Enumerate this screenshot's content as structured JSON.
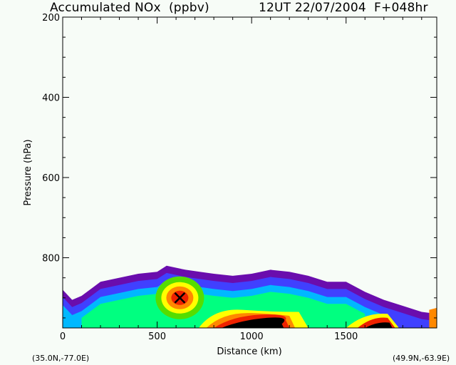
{
  "header": {
    "title": "Accumulated NOx  (ppbv)",
    "time_label": "12UT 22/07/2004  F+048hr"
  },
  "footer": {
    "start_coord": "(35.0N,-77.0E)",
    "end_coord": "(49.9N,-63.9E)"
  },
  "chart_data": {
    "type": "heatmap",
    "title": "Accumulated NOx  (ppbv)",
    "subtitle": "12UT 22/07/2004  F+048hr",
    "xlabel": "Distance  (km)",
    "ylabel": "Pressure  (hPa)",
    "xlim": [
      0,
      1980
    ],
    "ylim": [
      200,
      975
    ],
    "y_inverted": true,
    "x_ticks": [
      0,
      500,
      1000,
      1500
    ],
    "y_ticks": [
      200,
      400,
      600,
      800
    ],
    "marker": {
      "label": "X",
      "x": 620,
      "y": 900
    },
    "plume_top_hpa": {
      "x": [
        0,
        50,
        100,
        200,
        300,
        400,
        500,
        550,
        650,
        800,
        900,
        1000,
        1100,
        1200,
        1300,
        1400,
        1500,
        1600,
        1700,
        1800,
        1900,
        1980
      ],
      "y": [
        880,
        905,
        895,
        860,
        850,
        840,
        835,
        820,
        830,
        840,
        845,
        840,
        830,
        835,
        845,
        860,
        860,
        885,
        905,
        920,
        935,
        940
      ]
    },
    "contour_colors": [
      "#6a0dad",
      "#4040ff",
      "#00b8ff",
      "#00ff80",
      "#55dd00",
      "#ffff00",
      "#ff8800",
      "#ee2200",
      "#000000"
    ],
    "grid": false
  }
}
